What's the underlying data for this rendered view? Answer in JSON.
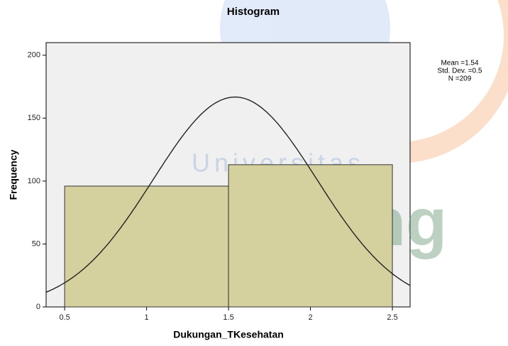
{
  "chart_data": {
    "type": "histogram",
    "title": "Histogram",
    "x_label": "Dukungan_TKesehatan",
    "y_label": "Frequency",
    "bins": [
      0.5,
      1.5,
      2.5
    ],
    "values": [
      96,
      113
    ],
    "color": "#d5d19f",
    "xlim": [
      0.387,
      2.608
    ],
    "xticks": [
      0.5,
      1,
      1.5,
      2,
      2.5
    ],
    "ylim": [
      0,
      210
    ],
    "yticks": [
      0,
      50,
      100,
      150,
      200
    ],
    "normal_curve": true,
    "stats": [
      {
        "value": 1.54,
        "label": "Mean =1.54"
      },
      {
        "value": 0.5,
        "label": "Std. Dev. =0.5"
      },
      {
        "value": 209,
        "label": "N =209"
      }
    ]
  },
  "watermark": [
    "Universitas",
    "Esa Ung"
  ]
}
